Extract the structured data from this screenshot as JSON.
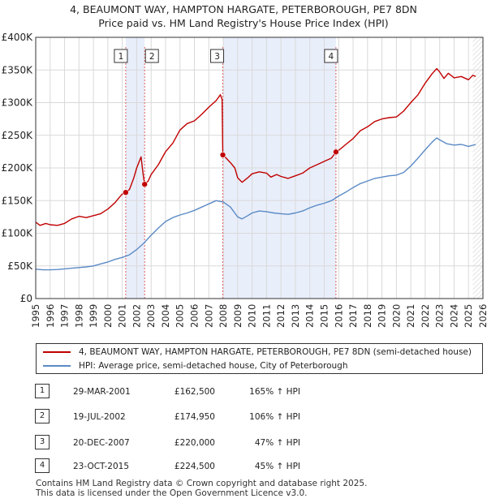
{
  "header": {
    "line1": "4, BEAUMONT WAY, HAMPTON HARGATE, PETERBOROUGH, PE7 8DN",
    "line2": "Price paid vs. HM Land Registry's House Price Index (HPI)"
  },
  "colors": {
    "property": "#c00000",
    "hpi": "#5b8ac6",
    "shade": "#e8eefa",
    "vline": "#e06060",
    "grid": "#d9d9d9"
  },
  "chart_data": {
    "type": "line",
    "ylim": [
      0,
      400000
    ],
    "xlim": [
      1995,
      2026
    ],
    "y_ticks": [
      0,
      50000,
      100000,
      150000,
      200000,
      250000,
      300000,
      350000,
      400000
    ],
    "y_tick_labels": [
      "£0",
      "£50K",
      "£100K",
      "£150K",
      "£200K",
      "£250K",
      "£300K",
      "£350K",
      "£400K"
    ],
    "x_ticks": [
      1995,
      1996,
      1997,
      1998,
      1999,
      2000,
      2001,
      2002,
      2003,
      2004,
      2005,
      2006,
      2007,
      2008,
      2009,
      2010,
      2011,
      2012,
      2013,
      2014,
      2015,
      2016,
      2017,
      2018,
      2019,
      2020,
      2021,
      2022,
      2023,
      2024,
      2025,
      2026
    ],
    "grid": true,
    "shaded_ranges": [
      [
        2001.24,
        2002.55
      ],
      [
        2007.97,
        2015.81
      ]
    ],
    "future_hatch_start": 2025.3,
    "series": [
      {
        "name": "4, BEAUMONT WAY, HAMPTON HARGATE, PETERBOROUGH, PE7 8DN (semi-detached house)",
        "color": "#c00000",
        "points": [
          [
            1995.0,
            117000
          ],
          [
            1995.3,
            112000
          ],
          [
            1995.7,
            115000
          ],
          [
            1996.0,
            113000
          ],
          [
            1996.5,
            112000
          ],
          [
            1997.0,
            115000
          ],
          [
            1997.5,
            122000
          ],
          [
            1998.0,
            126000
          ],
          [
            1998.5,
            124000
          ],
          [
            1999.0,
            127000
          ],
          [
            1999.5,
            130000
          ],
          [
            2000.0,
            137000
          ],
          [
            2000.5,
            147000
          ],
          [
            2000.8,
            155000
          ],
          [
            2001.0,
            160000
          ],
          [
            2001.24,
            162500
          ],
          [
            2001.5,
            167000
          ],
          [
            2001.8,
            185000
          ],
          [
            2002.0,
            200000
          ],
          [
            2002.3,
            217000
          ],
          [
            2002.45,
            190000
          ],
          [
            2002.55,
            174950
          ],
          [
            2002.8,
            180000
          ],
          [
            2003.0,
            190000
          ],
          [
            2003.5,
            205000
          ],
          [
            2004.0,
            225000
          ],
          [
            2004.5,
            238000
          ],
          [
            2005.0,
            258000
          ],
          [
            2005.5,
            268000
          ],
          [
            2006.0,
            272000
          ],
          [
            2006.5,
            282000
          ],
          [
            2007.0,
            293000
          ],
          [
            2007.5,
            303000
          ],
          [
            2007.8,
            312000
          ],
          [
            2007.92,
            305000
          ],
          [
            2007.97,
            220000
          ],
          [
            2008.2,
            215000
          ],
          [
            2008.5,
            208000
          ],
          [
            2008.8,
            200000
          ],
          [
            2009.0,
            185000
          ],
          [
            2009.3,
            178000
          ],
          [
            2009.7,
            185000
          ],
          [
            2010.0,
            191000
          ],
          [
            2010.5,
            194000
          ],
          [
            2011.0,
            192000
          ],
          [
            2011.3,
            186000
          ],
          [
            2011.7,
            190000
          ],
          [
            2012.0,
            187000
          ],
          [
            2012.5,
            184000
          ],
          [
            2013.0,
            188000
          ],
          [
            2013.5,
            192000
          ],
          [
            2014.0,
            200000
          ],
          [
            2014.5,
            205000
          ],
          [
            2015.0,
            210000
          ],
          [
            2015.5,
            215000
          ],
          [
            2015.81,
            224500
          ],
          [
            2016.0,
            227000
          ],
          [
            2016.5,
            236000
          ],
          [
            2017.0,
            245000
          ],
          [
            2017.5,
            257000
          ],
          [
            2018.0,
            263000
          ],
          [
            2018.5,
            271000
          ],
          [
            2019.0,
            275000
          ],
          [
            2019.5,
            277000
          ],
          [
            2020.0,
            278000
          ],
          [
            2020.5,
            287000
          ],
          [
            2021.0,
            300000
          ],
          [
            2021.5,
            312000
          ],
          [
            2022.0,
            330000
          ],
          [
            2022.5,
            345000
          ],
          [
            2022.8,
            352000
          ],
          [
            2023.0,
            347000
          ],
          [
            2023.3,
            337000
          ],
          [
            2023.6,
            345000
          ],
          [
            2024.0,
            338000
          ],
          [
            2024.5,
            340000
          ],
          [
            2025.0,
            335000
          ],
          [
            2025.3,
            342000
          ],
          [
            2025.5,
            340000
          ]
        ]
      },
      {
        "name": "HPI: Average price, semi-detached house, City of Peterborough",
        "color": "#5b8ac6",
        "points": [
          [
            1995.0,
            45000
          ],
          [
            1995.5,
            44000
          ],
          [
            1996.0,
            44000
          ],
          [
            1996.5,
            44500
          ],
          [
            1997.0,
            45500
          ],
          [
            1997.5,
            46500
          ],
          [
            1998.0,
            47500
          ],
          [
            1998.5,
            48500
          ],
          [
            1999.0,
            50000
          ],
          [
            1999.5,
            53000
          ],
          [
            2000.0,
            56000
          ],
          [
            2000.5,
            60000
          ],
          [
            2001.0,
            63000
          ],
          [
            2001.5,
            67000
          ],
          [
            2002.0,
            75000
          ],
          [
            2002.5,
            85000
          ],
          [
            2003.0,
            97000
          ],
          [
            2003.5,
            108000
          ],
          [
            2004.0,
            118000
          ],
          [
            2004.5,
            124000
          ],
          [
            2005.0,
            128000
          ],
          [
            2005.5,
            131000
          ],
          [
            2006.0,
            135000
          ],
          [
            2006.5,
            140000
          ],
          [
            2007.0,
            145000
          ],
          [
            2007.5,
            150000
          ],
          [
            2008.0,
            148000
          ],
          [
            2008.5,
            140000
          ],
          [
            2009.0,
            125000
          ],
          [
            2009.3,
            122000
          ],
          [
            2009.7,
            127000
          ],
          [
            2010.0,
            131000
          ],
          [
            2010.5,
            134000
          ],
          [
            2011.0,
            133000
          ],
          [
            2011.5,
            131000
          ],
          [
            2012.0,
            130000
          ],
          [
            2012.5,
            129000
          ],
          [
            2013.0,
            131000
          ],
          [
            2013.5,
            134000
          ],
          [
            2014.0,
            139000
          ],
          [
            2014.5,
            143000
          ],
          [
            2015.0,
            146000
          ],
          [
            2015.5,
            150000
          ],
          [
            2016.0,
            157000
          ],
          [
            2016.5,
            163000
          ],
          [
            2017.0,
            170000
          ],
          [
            2017.5,
            176000
          ],
          [
            2018.0,
            180000
          ],
          [
            2018.5,
            184000
          ],
          [
            2019.0,
            186000
          ],
          [
            2019.5,
            188000
          ],
          [
            2020.0,
            189000
          ],
          [
            2020.5,
            193000
          ],
          [
            2021.0,
            203000
          ],
          [
            2021.5,
            215000
          ],
          [
            2022.0,
            228000
          ],
          [
            2022.5,
            240000
          ],
          [
            2022.8,
            246000
          ],
          [
            2023.0,
            243000
          ],
          [
            2023.5,
            237000
          ],
          [
            2024.0,
            235000
          ],
          [
            2024.5,
            236000
          ],
          [
            2025.0,
            233000
          ],
          [
            2025.5,
            236000
          ]
        ]
      }
    ],
    "sales": [
      {
        "label": "1",
        "x": 2001.24,
        "price": 162500
      },
      {
        "label": "2",
        "x": 2002.55,
        "price": 174950
      },
      {
        "label": "3",
        "x": 2007.97,
        "price": 220000
      },
      {
        "label": "4",
        "x": 2015.81,
        "price": 224500
      }
    ]
  },
  "legend": {
    "property_label": "4, BEAUMONT WAY, HAMPTON HARGATE, PETERBOROUGH, PE7 8DN (semi-detached house)",
    "hpi_label": "HPI: Average price, semi-detached house, City of Peterborough"
  },
  "table": {
    "rows": [
      {
        "num": "1",
        "date": "29-MAR-2001",
        "price": "£162,500",
        "hpi": "165% ↑ HPI"
      },
      {
        "num": "2",
        "date": "19-JUL-2002",
        "price": "£174,950",
        "hpi": "106% ↑ HPI"
      },
      {
        "num": "3",
        "date": "20-DEC-2007",
        "price": "£220,000",
        "hpi": "47% ↑ HPI"
      },
      {
        "num": "4",
        "date": "23-OCT-2015",
        "price": "£224,500",
        "hpi": "45% ↑ HPI"
      }
    ]
  },
  "footer": {
    "line1": "Contains HM Land Registry data © Crown copyright and database right 2025.",
    "line2": "This data is licensed under the Open Government Licence v3.0."
  }
}
